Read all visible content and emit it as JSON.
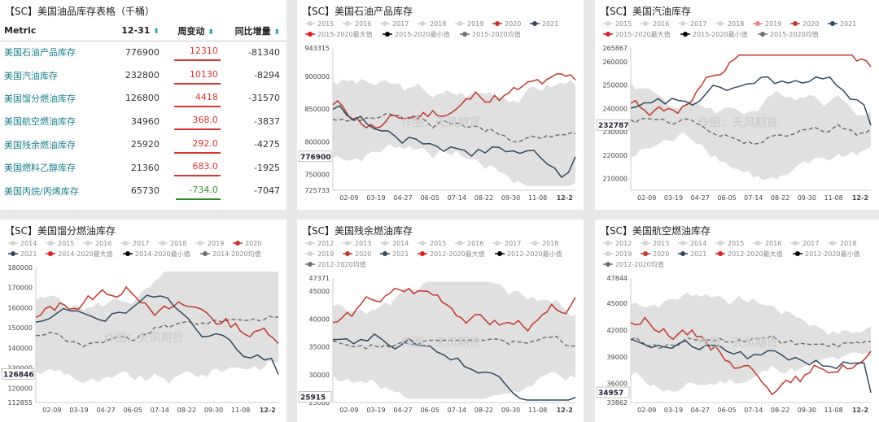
{
  "table": {
    "title": "【SC】美国油品库存表格（千桶）",
    "headers": [
      "Metric",
      "12-31",
      "周变动",
      "同比增量"
    ],
    "rows": [
      {
        "name": "美国石油产品库存",
        "value": "776900",
        "change": "12310",
        "yoy": "-81340",
        "dir": "pos"
      },
      {
        "name": "美国汽油库存",
        "value": "232800",
        "change": "10130",
        "yoy": "-8294",
        "dir": "pos"
      },
      {
        "name": "美国馏分燃油库存",
        "value": "126800",
        "change": "4418",
        "yoy": "-31570",
        "dir": "pos"
      },
      {
        "name": "美国航空燃油库存",
        "value": "34960",
        "change": "368.0",
        "yoy": "-3837",
        "dir": "pos"
      },
      {
        "name": "美国残余燃油库存",
        "value": "25920",
        "change": "292.0",
        "yoy": "-4275",
        "dir": "pos"
      },
      {
        "name": "美国燃料乙醇库存",
        "value": "21360",
        "change": "683.0",
        "yoy": "-1925",
        "dir": "pos"
      },
      {
        "name": "美国丙烷/丙烯库存",
        "value": "65730",
        "change": "-734.0",
        "yoy": "-7047",
        "dir": "neg"
      }
    ]
  },
  "watermark": "作图：天风期货",
  "colors": {
    "max": "#e41a1c",
    "min": "#000000",
    "avg": "#707070",
    "y2020": "#c0392b",
    "y2021": "#34495e",
    "y2019": "#f08080",
    "old": "#d3d3d3"
  },
  "x_ticks": [
    "02-09",
    "03-19",
    "04-27",
    "06-05",
    "07-14",
    "08-22",
    "09-30",
    "11-08",
    "12-2"
  ],
  "charts": [
    {
      "id": "p1",
      "title": "【SC】美国石油产品库存",
      "legend": [
        [
          "2015",
          "old"
        ],
        [
          "2016",
          "old"
        ],
        [
          "2017",
          "old"
        ],
        [
          "2018",
          "old"
        ],
        [
          "2019",
          "old"
        ],
        [
          "2020",
          "y2020"
        ],
        [
          "2021",
          "y2021"
        ],
        [
          "2015-2020最大值",
          "max"
        ],
        [
          "2015-2020最小值",
          "min"
        ],
        [
          "2015-2020均值",
          "avg"
        ]
      ],
      "ymin": 725733,
      "ymax": 943315,
      "yticks": [
        943315,
        900000,
        850000,
        800000,
        750000,
        725733
      ],
      "last": 776900,
      "chart_data": {
        "type": "line"
      }
    },
    {
      "id": "p2",
      "title": "【SC】美国汽油库存",
      "legend": [
        [
          "2015",
          "old"
        ],
        [
          "2016",
          "old"
        ],
        [
          "2017",
          "old"
        ],
        [
          "2018",
          "old"
        ],
        [
          "2019",
          "y2019"
        ],
        [
          "2020",
          "y2020"
        ],
        [
          "2021",
          "y2021"
        ],
        [
          "2015-2020最大值",
          "max"
        ],
        [
          "2015-2020最小值",
          "min"
        ],
        [
          "2015-2020均值",
          "avg"
        ]
      ],
      "ymin": 205000,
      "ymax": 265867,
      "yticks": [
        265867,
        260000,
        250000,
        240000,
        230000,
        220000,
        210000
      ],
      "last": 232787,
      "chart_data": {
        "type": "line"
      }
    },
    {
      "id": "p3",
      "title": "【SC】美国馏分燃油库存",
      "legend": [
        [
          "2014",
          "old"
        ],
        [
          "2015",
          "old"
        ],
        [
          "2016",
          "old"
        ],
        [
          "2017",
          "old"
        ],
        [
          "2018",
          "old"
        ],
        [
          "2019",
          "old"
        ],
        [
          "2020",
          "y2020"
        ],
        [
          "2021",
          "y2021"
        ],
        [
          "2014-2020最大值",
          "max"
        ],
        [
          "2014-2020最小值",
          "min"
        ],
        [
          "2014-2020均值",
          "avg"
        ]
      ],
      "ymin": 112855,
      "ymax": 180000,
      "yticks": [
        180000,
        170000,
        160000,
        150000,
        140000,
        130000,
        120000,
        112855
      ],
      "last": 126846,
      "chart_data": {
        "type": "line"
      }
    },
    {
      "id": "p4",
      "title": "【SC】美国残余燃油库存",
      "legend": [
        [
          "2012",
          "old"
        ],
        [
          "2013",
          "old"
        ],
        [
          "2014",
          "old"
        ],
        [
          "2015",
          "old"
        ],
        [
          "2016",
          "old"
        ],
        [
          "2017",
          "old"
        ],
        [
          "2018",
          "old"
        ],
        [
          "2019",
          "old"
        ],
        [
          "2020",
          "y2020"
        ],
        [
          "2021",
          "y2021"
        ],
        [
          "2012-2020最大值",
          "max"
        ],
        [
          "2012-2020最小值",
          "min"
        ],
        [
          "2012-2020均值",
          "avg"
        ]
      ],
      "ymin": 25000,
      "ymax": 47371,
      "yticks": [
        47371,
        45000,
        40000,
        35000,
        30000,
        25000
      ],
      "last": 25915,
      "chart_data": {
        "type": "line"
      }
    },
    {
      "id": "p5",
      "title": "【SC】美国航空燃油库存",
      "legend": [
        [
          "2012",
          "old"
        ],
        [
          "2013",
          "old"
        ],
        [
          "2014",
          "old"
        ],
        [
          "2015",
          "old"
        ],
        [
          "2016",
          "old"
        ],
        [
          "2017",
          "old"
        ],
        [
          "2018",
          "old"
        ],
        [
          "2019",
          "old"
        ],
        [
          "2020",
          "y2020"
        ],
        [
          "2021",
          "y2021"
        ],
        [
          "2012-2020最大值",
          "max"
        ],
        [
          "2012-2020最小值",
          "min"
        ],
        [
          "2012-2020均值",
          "avg"
        ]
      ],
      "ymin": 33862,
      "ymax": 47844,
      "yticks": [
        47844,
        45000,
        42000,
        39000,
        36000,
        33862
      ],
      "last": 34957,
      "chart_data": {
        "type": "line"
      }
    }
  ]
}
